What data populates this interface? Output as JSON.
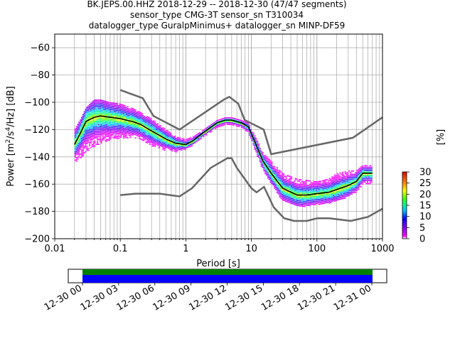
{
  "chart_data": {
    "type": "heatmap",
    "title_lines": [
      "BK.JEPS.00.HHZ   2018-12-29 -- 2018-12-30  (47/47 segments)",
      "sensor_type CMG-3T sensor_sn T310034",
      "datalogger_type GuralpMinimus+ datalogger_sn MINP-DF59"
    ],
    "xlabel": "Period [s]",
    "ylabel": "Power [m²/s⁴/Hz] [dB]",
    "x_scale": "log",
    "xlim": [
      0.01,
      1000
    ],
    "ylim": [
      -200,
      -50
    ],
    "x_ticks": [
      {
        "value": 0.01,
        "label": "0.01"
      },
      {
        "value": 0.1,
        "label": "0.1"
      },
      {
        "value": 1,
        "label": "1"
      },
      {
        "value": 10,
        "label": "10"
      },
      {
        "value": 100,
        "label": "100"
      },
      {
        "value": 1000,
        "label": "1000"
      }
    ],
    "y_ticks": [
      {
        "value": -60,
        "label": "−60"
      },
      {
        "value": -80,
        "label": "−80"
      },
      {
        "value": -100,
        "label": "−100"
      },
      {
        "value": -120,
        "label": "−120"
      },
      {
        "value": -140,
        "label": "−140"
      },
      {
        "value": -160,
        "label": "−160"
      },
      {
        "value": -180,
        "label": "−180"
      },
      {
        "value": -200,
        "label": "−200"
      }
    ],
    "grid": true,
    "colorbar": {
      "label": "[%]",
      "range": [
        0,
        30
      ],
      "ticks": [
        {
          "value": 0,
          "label": "0"
        },
        {
          "value": 5,
          "label": "5"
        },
        {
          "value": 10,
          "label": "10"
        },
        {
          "value": 15,
          "label": "15"
        },
        {
          "value": 20,
          "label": "20"
        },
        {
          "value": 25,
          "label": "25"
        },
        {
          "value": 30,
          "label": "30"
        }
      ]
    },
    "mean_curve": [
      [
        0.02,
        -131
      ],
      [
        0.025,
        -122
      ],
      [
        0.03,
        -114
      ],
      [
        0.04,
        -111
      ],
      [
        0.05,
        -110
      ],
      [
        0.07,
        -111
      ],
      [
        0.1,
        -112
      ],
      [
        0.15,
        -114
      ],
      [
        0.2,
        -116
      ],
      [
        0.3,
        -121
      ],
      [
        0.5,
        -127
      ],
      [
        0.7,
        -130
      ],
      [
        1.0,
        -131
      ],
      [
        1.3,
        -128
      ],
      [
        2.0,
        -121
      ],
      [
        3.0,
        -115
      ],
      [
        4.0,
        -113
      ],
      [
        5.0,
        -113
      ],
      [
        7.0,
        -115
      ],
      [
        9.0,
        -118
      ],
      [
        12.0,
        -132
      ],
      [
        15.0,
        -143
      ],
      [
        20.0,
        -152
      ],
      [
        30.0,
        -163
      ],
      [
        50.0,
        -168
      ],
      [
        70.0,
        -168
      ],
      [
        100.0,
        -167
      ],
      [
        150.0,
        -166
      ],
      [
        200.0,
        -164
      ],
      [
        300.0,
        -161
      ],
      [
        400.0,
        -158
      ],
      [
        500.0,
        -152
      ],
      [
        700.0,
        -152
      ]
    ],
    "nhnm": [
      [
        0.1,
        -91
      ],
      [
        0.22,
        -97
      ],
      [
        0.32,
        -110
      ],
      [
        0.8,
        -120
      ],
      [
        3.8,
        -98
      ],
      [
        4.6,
        -96
      ],
      [
        6.3,
        -101
      ],
      [
        7.9,
        -113
      ],
      [
        15.4,
        -120
      ],
      [
        20,
        -138
      ],
      [
        354,
        -126
      ],
      [
        1000,
        -111
      ]
    ],
    "nlnm": [
      [
        0.1,
        -168
      ],
      [
        0.17,
        -167
      ],
      [
        0.4,
        -167
      ],
      [
        0.8,
        -169
      ],
      [
        1.24,
        -163
      ],
      [
        2.4,
        -148
      ],
      [
        4.3,
        -141
      ],
      [
        5.0,
        -141
      ],
      [
        6.0,
        -148
      ],
      [
        10,
        -163
      ],
      [
        12,
        -166
      ],
      [
        15.6,
        -162
      ],
      [
        21.9,
        -177
      ],
      [
        31.6,
        -185
      ],
      [
        45,
        -187
      ],
      [
        70,
        -187
      ],
      [
        101,
        -185
      ],
      [
        154,
        -185
      ],
      [
        328,
        -187
      ],
      [
        600,
        -184
      ],
      [
        1000,
        -178
      ]
    ],
    "density_band": [
      [
        0.02,
        -144,
        -120
      ],
      [
        0.025,
        -140,
        -112
      ],
      [
        0.03,
        -138,
        -104
      ],
      [
        0.04,
        -132,
        -98
      ],
      [
        0.05,
        -130,
        -98
      ],
      [
        0.07,
        -128,
        -100
      ],
      [
        0.1,
        -126,
        -101
      ],
      [
        0.15,
        -126,
        -104
      ],
      [
        0.2,
        -127,
        -107
      ],
      [
        0.3,
        -132,
        -112
      ],
      [
        0.5,
        -135,
        -120
      ],
      [
        0.7,
        -136,
        -125
      ],
      [
        1.0,
        -134,
        -127
      ],
      [
        1.3,
        -131,
        -125
      ],
      [
        2.0,
        -124,
        -119
      ],
      [
        3.0,
        -118,
        -113
      ],
      [
        4.0,
        -116,
        -111
      ],
      [
        5.0,
        -116,
        -111
      ],
      [
        7.0,
        -118,
        -113
      ],
      [
        9.0,
        -122,
        -115
      ],
      [
        12.0,
        -138,
        -127
      ],
      [
        15.0,
        -150,
        -137
      ],
      [
        20.0,
        -160,
        -143
      ],
      [
        30.0,
        -172,
        -152
      ],
      [
        50.0,
        -176,
        -156
      ],
      [
        70.0,
        -176,
        -157
      ],
      [
        100.0,
        -175,
        -158
      ],
      [
        150.0,
        -174,
        -156
      ],
      [
        200.0,
        -172,
        -152
      ],
      [
        300.0,
        -169,
        -150
      ],
      [
        400.0,
        -166,
        -150
      ],
      [
        500.0,
        -160,
        -146
      ],
      [
        700.0,
        -159,
        -146
      ]
    ],
    "timeline": {
      "tick_labels": [
        "12-30 00",
        "12-30 03",
        "12-30 06",
        "12-30 09",
        "12-30 12",
        "12-30 15",
        "12-30 18",
        "12-30 21",
        "12-31 00"
      ],
      "colors": {
        "top_band": "#008000",
        "bottom_band": "#0000ff"
      }
    }
  }
}
